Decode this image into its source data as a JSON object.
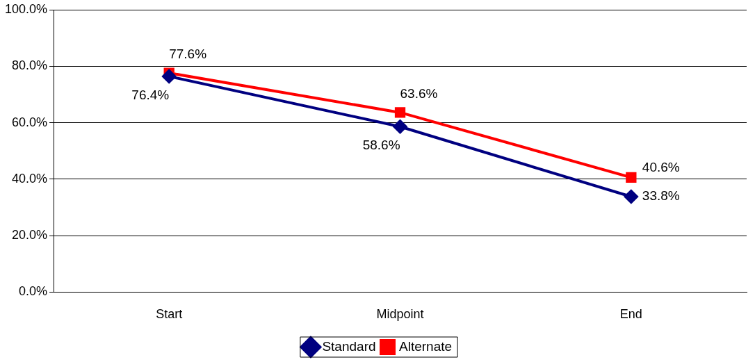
{
  "chart_data": {
    "type": "line",
    "categories": [
      "Start",
      "Midpoint",
      "End"
    ],
    "series": [
      {
        "name": "Standard",
        "color": "#000080",
        "marker": "diamond",
        "values": [
          76.4,
          58.6,
          33.8
        ],
        "value_labels": [
          "76.4%",
          "58.6%",
          "33.8%"
        ]
      },
      {
        "name": "Alternate",
        "color": "#ff0000",
        "marker": "square",
        "values": [
          77.6,
          63.6,
          40.6
        ],
        "value_labels": [
          "77.6%",
          "63.6%",
          "40.6%"
        ]
      }
    ],
    "ylim": [
      0,
      100
    ],
    "yticks": [
      {
        "value": 0,
        "label": "0.0%"
      },
      {
        "value": 20,
        "label": "20.0%"
      },
      {
        "value": 40,
        "label": "40.0%"
      },
      {
        "value": 60,
        "label": "60.0%"
      },
      {
        "value": 80,
        "label": "80.0%"
      },
      {
        "value": 100,
        "label": "100.0%"
      }
    ],
    "grid": "y",
    "legend": "bottom",
    "line_style": "solid"
  }
}
